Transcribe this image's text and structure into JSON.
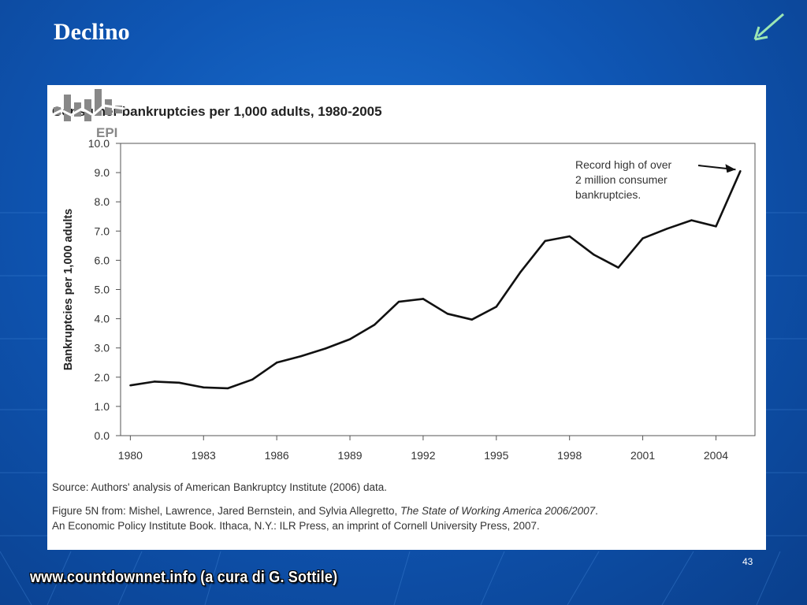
{
  "slide": {
    "title": "Declino",
    "page_number": "43",
    "footer": "www.countdownnet.info (a cura di G. Sottile)",
    "arrow_icon": "arrow-down-left-icon",
    "colors": {
      "background": "#0f56b4",
      "arrow": "#9be6b4",
      "title": "#ffffff"
    }
  },
  "chart_data": {
    "type": "line",
    "title": "Consumer bankruptcies per 1,000 adults, 1980-2005",
    "xlabel": "",
    "ylabel": "Bankruptcies per 1,000 adults",
    "xlim": [
      1979.6,
      2005.6
    ],
    "ylim": [
      0,
      10
    ],
    "x_ticks": [
      "1980",
      "1983",
      "1986",
      "1989",
      "1992",
      "1995",
      "1998",
      "2001",
      "2004"
    ],
    "y_ticks": [
      "0.0",
      "1.0",
      "2.0",
      "3.0",
      "4.0",
      "5.0",
      "6.0",
      "7.0",
      "8.0",
      "9.0",
      "10.0"
    ],
    "grid": false,
    "x": [
      1980,
      1981,
      1982,
      1983,
      1984,
      1985,
      1986,
      1987,
      1988,
      1989,
      1990,
      1991,
      1992,
      1993,
      1994,
      1995,
      1996,
      1997,
      1998,
      1999,
      2000,
      2001,
      2002,
      2003,
      2004,
      2005
    ],
    "values": [
      1.72,
      1.85,
      1.81,
      1.65,
      1.62,
      1.92,
      2.5,
      2.72,
      2.98,
      3.3,
      3.79,
      4.58,
      4.68,
      4.17,
      3.97,
      4.41,
      5.61,
      6.66,
      6.82,
      6.19,
      5.75,
      6.75,
      7.08,
      7.37,
      7.16,
      9.05
    ],
    "annotation": {
      "lines": [
        "Record high of over",
        "2 million consumer",
        "bankruptcies."
      ],
      "target_x": 2005,
      "target_y": 9.05
    },
    "source": "Source: Authors' analysis of American Bankruptcy Institute (2006) data.",
    "figure_note": {
      "prefix": "Figure 5N from: Mishel, Lawrence, Jared Bernstein, and Sylvia Allegretto, ",
      "book_title": "The State of Working America 2006/2007",
      "suffix": ".",
      "line2": "An Economic Policy Institute Book. Ithaca, N.Y.: ILR Press, an imprint of Cornell University Press, 2007."
    },
    "logo_text": "EPI"
  }
}
